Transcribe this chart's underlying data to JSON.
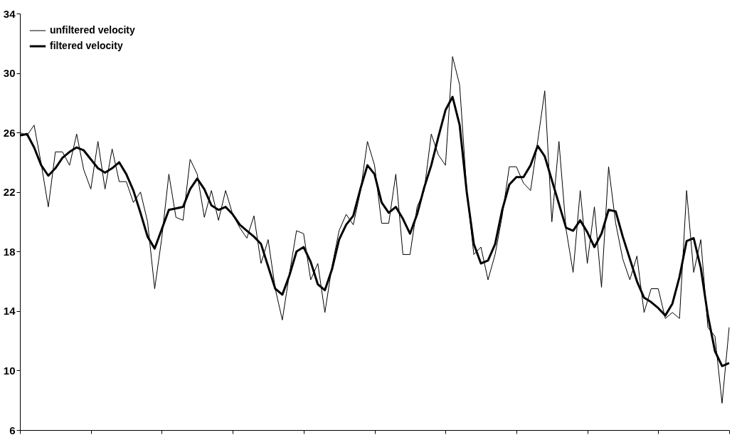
{
  "chart_data": {
    "type": "line",
    "categories": [
      null,
      null,
      null,
      null,
      null,
      null,
      null,
      null,
      null,
      null,
      null,
      null,
      null,
      null,
      null,
      null,
      null,
      null,
      null,
      null,
      null,
      null,
      null,
      null,
      null,
      null,
      null,
      null,
      null,
      null,
      null,
      null,
      null,
      null,
      null,
      null,
      null,
      null,
      null,
      null,
      null,
      null,
      null,
      null,
      null,
      null,
      null,
      null,
      null,
      null,
      null,
      null,
      null,
      null,
      null,
      null,
      null,
      null,
      null,
      null,
      null,
      null,
      null,
      null,
      null,
      null,
      null,
      null,
      null,
      null,
      null,
      null,
      null,
      null,
      null,
      null,
      null,
      null,
      null,
      null,
      null,
      null,
      null,
      null,
      null,
      null,
      null,
      null,
      null,
      null,
      null,
      null,
      null,
      null,
      null,
      null,
      null,
      null,
      null,
      null,
      null
    ],
    "ylim": [
      6,
      34
    ],
    "yticks": [
      6,
      10,
      14,
      18,
      22,
      26,
      30,
      34
    ],
    "tick_labels": "y",
    "grid": false,
    "legend": "top left",
    "marker": "none",
    "line_style": "solid",
    "series": [
      {
        "name": "unfiltered velocity",
        "color": "#000000",
        "values": [
          26.0,
          25.8,
          26.5,
          23.9,
          21.0,
          24.7,
          24.7,
          23.8,
          25.9,
          23.5,
          22.2,
          25.4,
          22.2,
          24.9,
          22.7,
          22.7,
          21.3,
          22.0,
          20.0,
          15.5,
          18.9,
          23.2,
          20.3,
          20.1,
          24.2,
          23.2,
          20.3,
          22.1,
          20.1,
          22.1,
          20.5,
          19.6,
          18.9,
          20.4,
          17.2,
          18.8,
          15.5,
          13.4,
          16.5,
          19.4,
          19.2,
          16.1,
          17.2,
          13.9,
          17.0,
          19.4,
          20.5,
          19.8,
          22.0,
          25.4,
          23.8,
          19.9,
          19.9,
          23.2,
          17.8,
          17.8,
          21.0,
          22.1,
          25.9,
          24.5,
          23.8,
          31.1,
          29.2,
          22.1,
          17.8,
          18.3,
          16.1,
          17.8,
          20.4,
          23.7,
          23.7,
          22.6,
          22.1,
          25.4,
          28.8,
          20.0,
          25.4,
          19.5,
          16.6,
          22.1,
          17.2,
          21.0,
          15.6,
          23.7,
          19.9,
          17.5,
          16.1,
          17.7,
          13.9,
          15.5,
          15.5,
          13.5,
          13.9,
          13.5,
          22.1,
          16.6,
          18.8,
          12.9,
          12.3,
          7.8,
          12.9
        ]
      },
      {
        "name": "filtered velocity",
        "color": "#000000",
        "values": [
          25.8,
          25.9,
          25.0,
          23.8,
          23.1,
          23.6,
          24.3,
          24.7,
          25.0,
          24.8,
          24.2,
          23.6,
          23.3,
          23.6,
          24.0,
          23.2,
          22.1,
          20.6,
          19.0,
          18.2,
          19.5,
          20.8,
          20.9,
          21.0,
          22.2,
          22.9,
          22.2,
          21.1,
          20.8,
          21.0,
          20.5,
          19.8,
          19.4,
          19.0,
          18.5,
          17.0,
          15.5,
          15.1,
          16.4,
          18.0,
          18.3,
          17.3,
          15.8,
          15.4,
          16.8,
          18.8,
          19.8,
          20.4,
          22.2,
          23.8,
          23.2,
          21.3,
          20.6,
          21.0,
          20.2,
          19.2,
          20.5,
          22.3,
          23.8,
          25.7,
          27.5,
          28.4,
          26.5,
          22.0,
          18.5,
          17.2,
          17.4,
          18.5,
          20.8,
          22.5,
          23.0,
          23.0,
          23.8,
          25.1,
          24.4,
          22.8,
          21.2,
          19.6,
          19.4,
          20.1,
          19.3,
          18.3,
          19.2,
          20.8,
          20.7,
          19.0,
          17.5,
          16.0,
          14.9,
          14.6,
          14.2,
          13.7,
          14.5,
          16.3,
          18.7,
          18.9,
          16.9,
          13.7,
          11.3,
          10.3,
          10.5
        ]
      }
    ]
  }
}
